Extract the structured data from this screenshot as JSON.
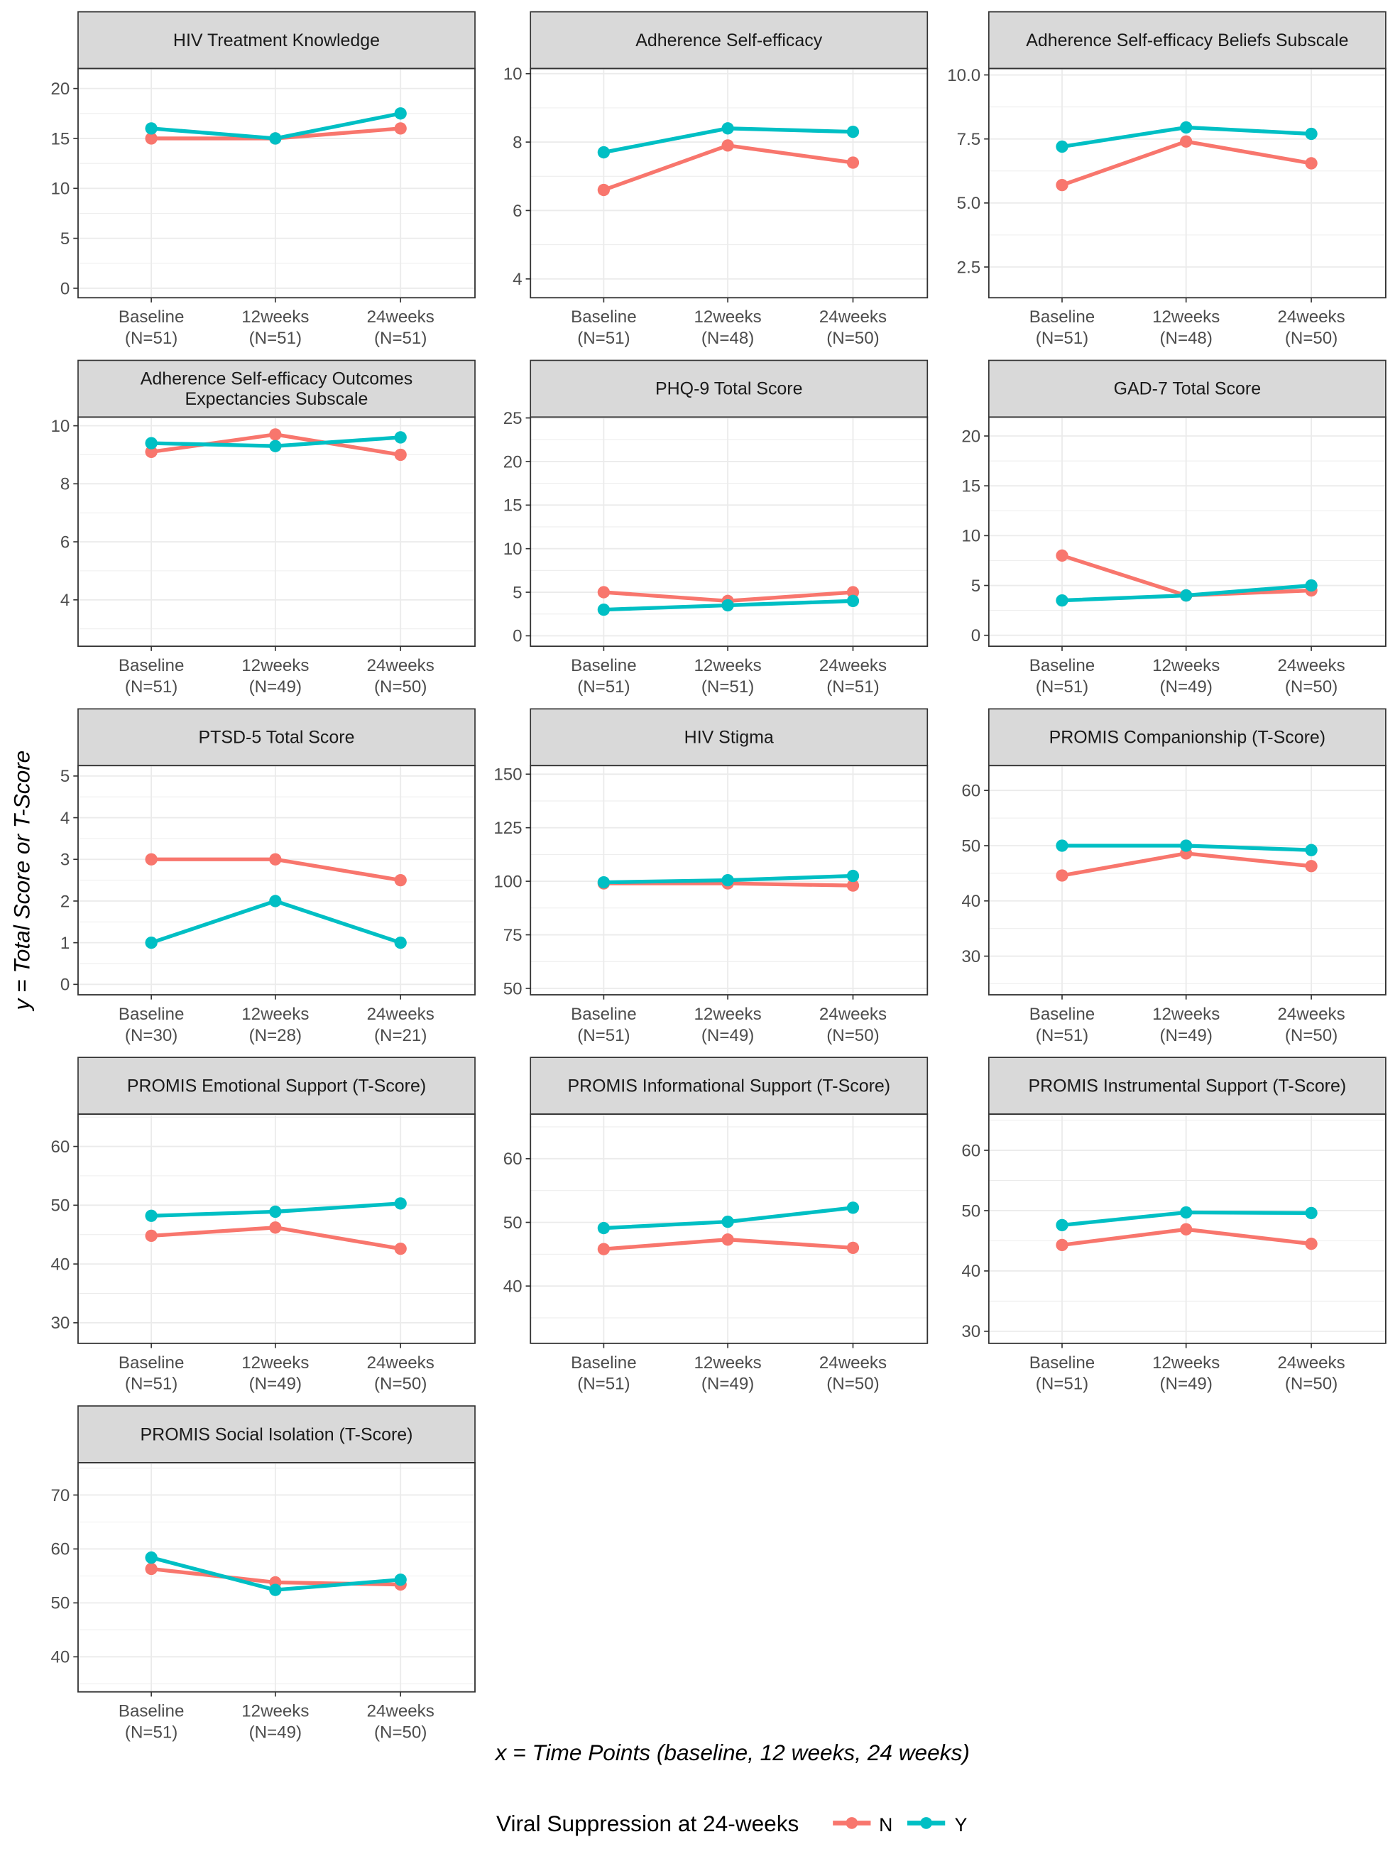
{
  "chart_data": {
    "type": "line",
    "xlabel": "x = Time Points (baseline, 12 weeks, 24 weeks)",
    "ylabel": "y = Total Score or T-Score",
    "categories": [
      "Baseline",
      "12weeks",
      "24weeks"
    ],
    "legend": {
      "title": "Viral Suppression at 24-weeks",
      "position": "bottom",
      "entries": [
        "N",
        "Y"
      ]
    },
    "colors": {
      "N": "#F8766D",
      "Y": "#00BFC4"
    },
    "grid": true,
    "panels": [
      {
        "title_lines": [
          "HIV Treatment Knowledge"
        ],
        "ylim": [
          -0.95,
          22
        ],
        "yticks": [
          "0",
          "5",
          "10",
          "15",
          "20"
        ],
        "n_labels": [
          "(N=51)",
          "(N=51)",
          "(N=51)"
        ],
        "series": [
          {
            "name": "N",
            "values": [
              15,
              15,
              16
            ]
          },
          {
            "name": "Y",
            "values": [
              16,
              15,
              17.5
            ]
          }
        ]
      },
      {
        "title_lines": [
          "Adherence Self-efficacy"
        ],
        "ylim": [
          3.45,
          10.15
        ],
        "yticks": [
          "4",
          "6",
          "8",
          "10"
        ],
        "n_labels": [
          "(N=51)",
          "(N=48)",
          "(N=50)"
        ],
        "series": [
          {
            "name": "N",
            "values": [
              6.6,
              7.9,
              7.4
            ]
          },
          {
            "name": "Y",
            "values": [
              7.7,
              8.4,
              8.3
            ]
          }
        ]
      },
      {
        "title_lines": [
          "Adherence Self-efficacy Beliefs Subscale"
        ],
        "ylim": [
          1.3,
          10.25
        ],
        "yticks": [
          "2.5",
          "5.0",
          "7.5",
          "10.0"
        ],
        "n_labels": [
          "(N=51)",
          "(N=48)",
          "(N=50)"
        ],
        "series": [
          {
            "name": "N",
            "values": [
              5.7,
              7.4,
              6.55
            ]
          },
          {
            "name": "Y",
            "values": [
              7.2,
              7.95,
              7.7
            ]
          }
        ]
      },
      {
        "title_lines": [
          "Adherence Self-efficacy Outcomes",
          "Expectancies Subscale"
        ],
        "ylim": [
          2.4,
          10.3
        ],
        "yticks": [
          "4",
          "6",
          "8",
          "10"
        ],
        "n_labels": [
          "(N=51)",
          "(N=49)",
          "(N=50)"
        ],
        "series": [
          {
            "name": "N",
            "values": [
              9.1,
              9.7,
              9.0
            ]
          },
          {
            "name": "Y",
            "values": [
              9.4,
              9.3,
              9.6
            ]
          }
        ]
      },
      {
        "title_lines": [
          "PHQ-9 Total Score"
        ],
        "ylim": [
          -1.2,
          25.1
        ],
        "yticks": [
          "0",
          "5",
          "10",
          "15",
          "20",
          "25"
        ],
        "n_labels": [
          "(N=51)",
          "(N=51)",
          "(N=51)"
        ],
        "series": [
          {
            "name": "N",
            "values": [
              5,
              4,
              5
            ]
          },
          {
            "name": "Y",
            "values": [
              3,
              3.5,
              4
            ]
          }
        ]
      },
      {
        "title_lines": [
          "GAD-7 Total Score"
        ],
        "ylim": [
          -1.1,
          21.9
        ],
        "yticks": [
          "0",
          "5",
          "10",
          "15",
          "20"
        ],
        "n_labels": [
          "(N=51)",
          "(N=49)",
          "(N=50)"
        ],
        "series": [
          {
            "name": "N",
            "values": [
              8,
              4,
              4.5
            ]
          },
          {
            "name": "Y",
            "values": [
              3.5,
              4,
              5
            ]
          }
        ]
      },
      {
        "title_lines": [
          "PTSD-5 Total Score"
        ],
        "ylim": [
          -0.25,
          5.25
        ],
        "yticks": [
          "0",
          "1",
          "2",
          "3",
          "4",
          "5"
        ],
        "n_labels": [
          "(N=30)",
          "(N=28)",
          "(N=21)"
        ],
        "series": [
          {
            "name": "N",
            "values": [
              3,
              3,
              2.5
            ]
          },
          {
            "name": "Y",
            "values": [
              1,
              2,
              1
            ]
          }
        ]
      },
      {
        "title_lines": [
          "HIV Stigma"
        ],
        "ylim": [
          47,
          154
        ],
        "yticks": [
          "50",
          "75",
          "100",
          "125",
          "150"
        ],
        "n_labels": [
          "(N=51)",
          "(N=49)",
          "(N=50)"
        ],
        "series": [
          {
            "name": "N",
            "values": [
              99,
              99,
              98
            ]
          },
          {
            "name": "Y",
            "values": [
              99.5,
              100.5,
              102.5
            ]
          }
        ]
      },
      {
        "title_lines": [
          "PROMIS Companionship (T-Score)"
        ],
        "ylim": [
          23,
          64.5
        ],
        "yticks": [
          "30",
          "40",
          "50",
          "60"
        ],
        "n_labels": [
          "(N=51)",
          "(N=49)",
          "(N=50)"
        ],
        "series": [
          {
            "name": "N",
            "values": [
              44.6,
              48.6,
              46.3
            ]
          },
          {
            "name": "Y",
            "values": [
              50,
              50,
              49.2
            ]
          }
        ]
      },
      {
        "title_lines": [
          "PROMIS Emotional Support (T-Score)"
        ],
        "ylim": [
          26.5,
          65.5
        ],
        "yticks": [
          "30",
          "40",
          "50",
          "60"
        ],
        "n_labels": [
          "(N=51)",
          "(N=49)",
          "(N=50)"
        ],
        "series": [
          {
            "name": "N",
            "values": [
              44.8,
              46.2,
              42.6
            ]
          },
          {
            "name": "Y",
            "values": [
              48.2,
              48.9,
              50.3
            ]
          }
        ]
      },
      {
        "title_lines": [
          "PROMIS Informational Support (T-Score)"
        ],
        "ylim": [
          31,
          67
        ],
        "yticks": [
          "40",
          "50",
          "60"
        ],
        "n_labels": [
          "(N=51)",
          "(N=49)",
          "(N=50)"
        ],
        "series": [
          {
            "name": "N",
            "values": [
              45.8,
              47.3,
              46
            ]
          },
          {
            "name": "Y",
            "values": [
              49.1,
              50.1,
              52.3
            ]
          }
        ]
      },
      {
        "title_lines": [
          "PROMIS Instrumental Support (T-Score)"
        ],
        "ylim": [
          28,
          66
        ],
        "yticks": [
          "30",
          "40",
          "50",
          "60"
        ],
        "n_labels": [
          "(N=51)",
          "(N=49)",
          "(N=50)"
        ],
        "series": [
          {
            "name": "N",
            "values": [
              44.3,
              46.9,
              44.5
            ]
          },
          {
            "name": "Y",
            "values": [
              47.6,
              49.7,
              49.6
            ]
          }
        ]
      },
      {
        "title_lines": [
          "PROMIS Social Isolation (T-Score)"
        ],
        "ylim": [
          33.5,
          76
        ],
        "yticks": [
          "40",
          "50",
          "60",
          "70"
        ],
        "n_labels": [
          "(N=51)",
          "(N=49)",
          "(N=50)"
        ],
        "series": [
          {
            "name": "N",
            "values": [
              56.3,
              53.8,
              53.4
            ]
          },
          {
            "name": "Y",
            "values": [
              58.4,
              52.4,
              54.3
            ]
          }
        ]
      }
    ]
  }
}
